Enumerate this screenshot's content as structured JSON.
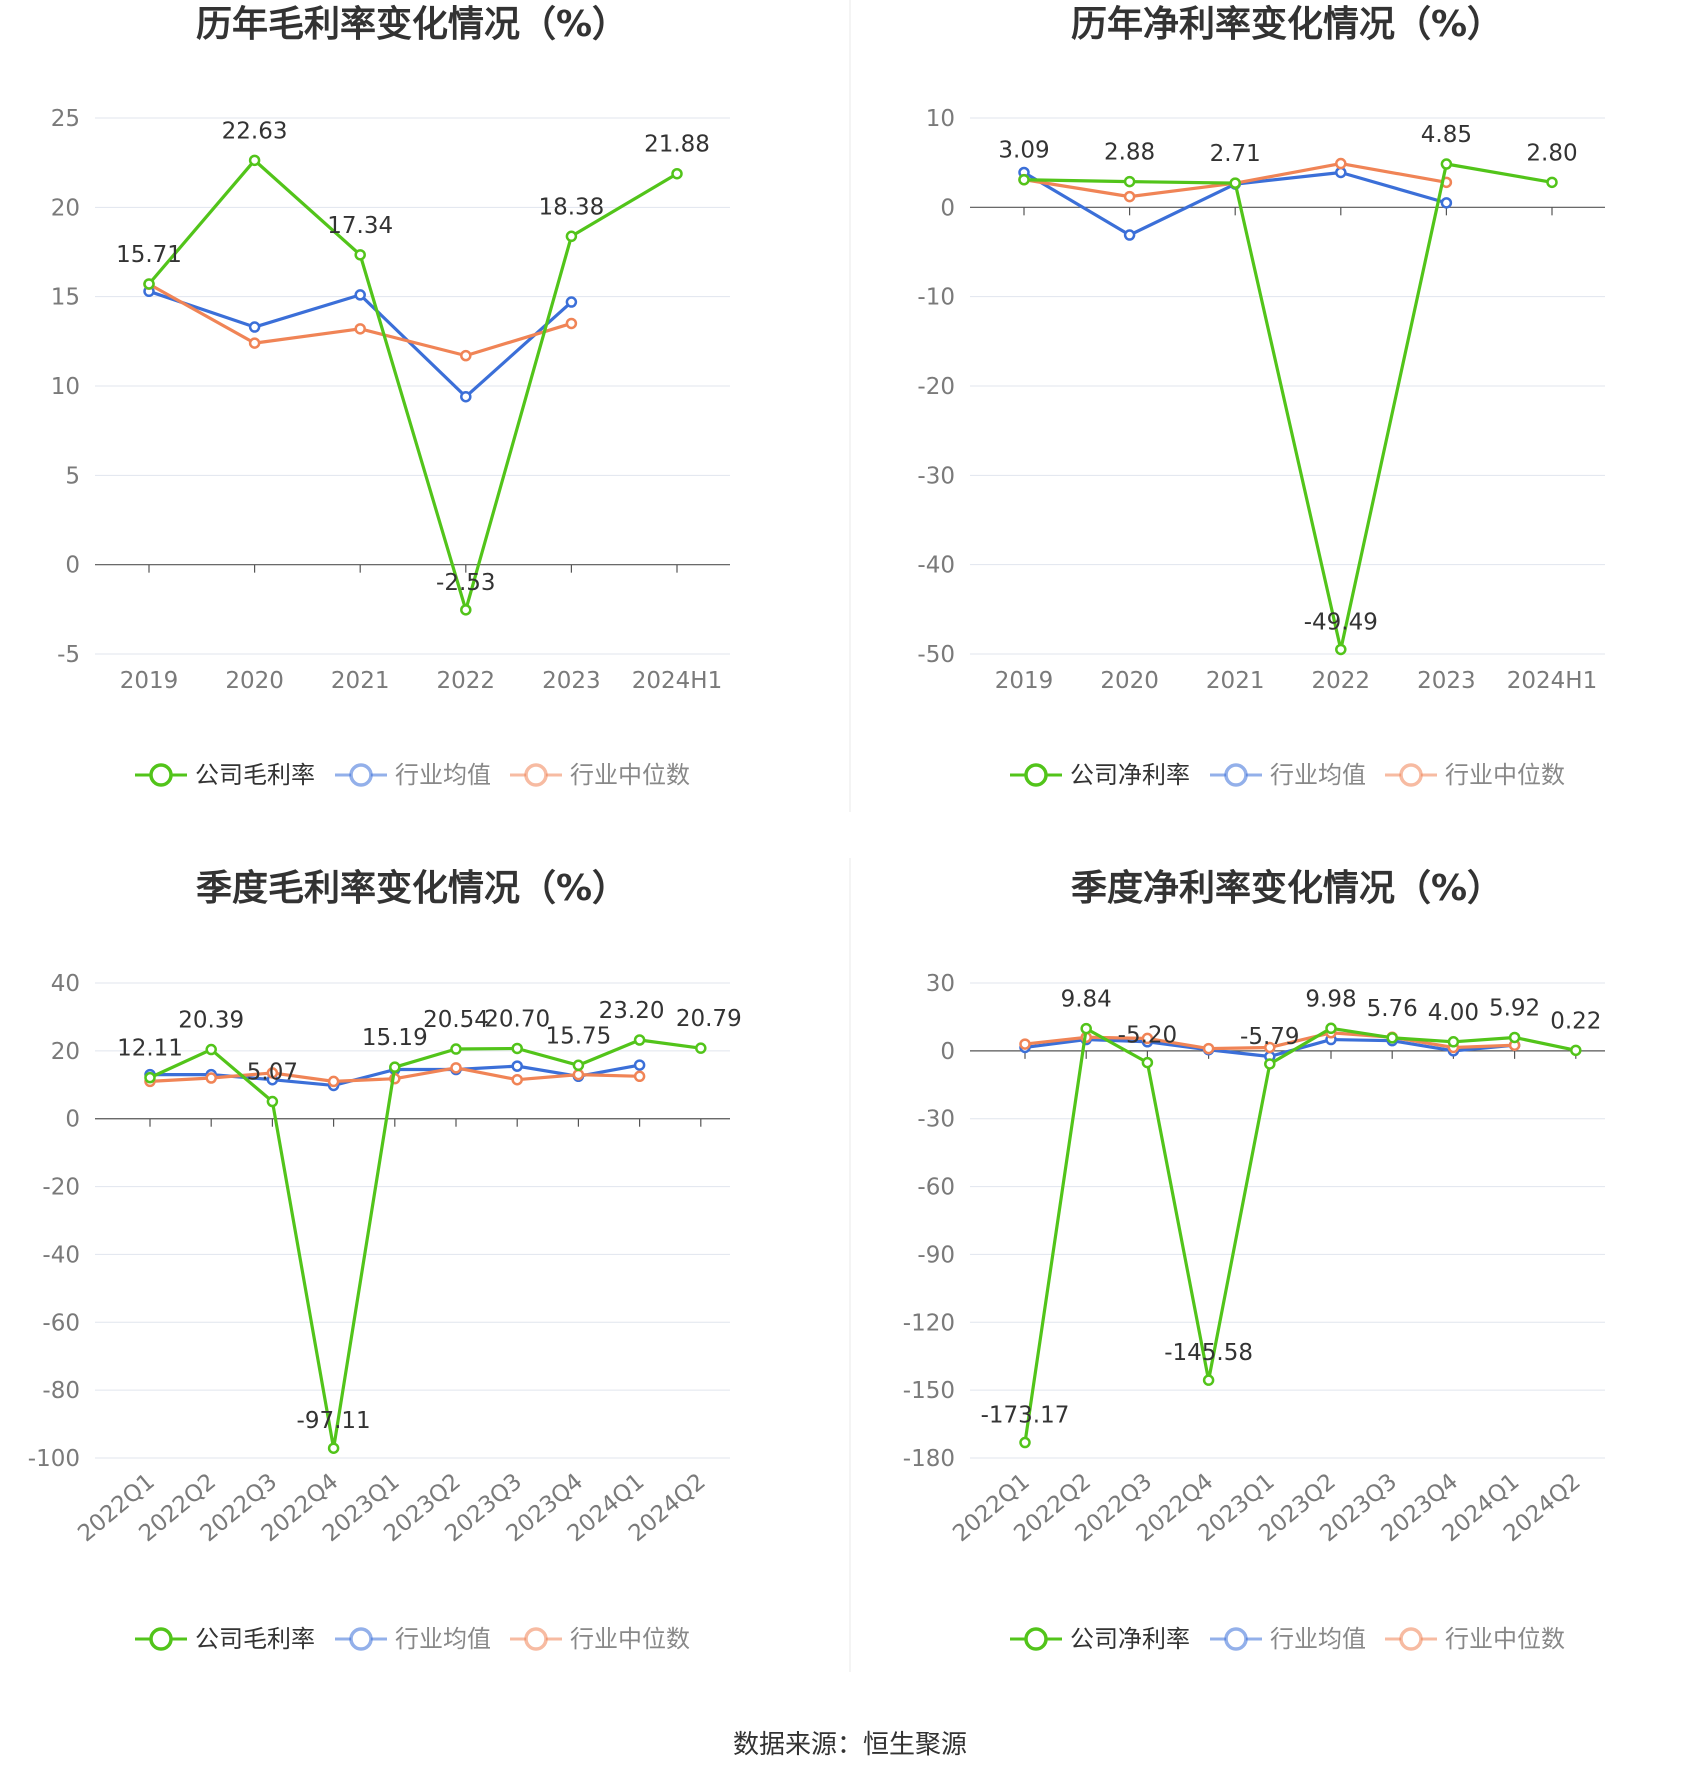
{
  "source_text": "数据来源：恒生聚源",
  "colors": {
    "company": "#52c41a",
    "avg": "#3b6fd8",
    "median": "#f08456",
    "grid": "#e1e5ee",
    "axis": "#555555"
  },
  "chart_data": [
    {
      "type": "line",
      "title": "历年毛利率变化情况（%）",
      "categories": [
        "2019",
        "2020",
        "2021",
        "2022",
        "2023",
        "2024H1"
      ],
      "yticks": [
        25,
        20,
        15,
        10,
        5,
        0,
        -5
      ],
      "ylim": [
        -5,
        25
      ],
      "series": [
        {
          "name": "公司毛利率",
          "values": [
            15.71,
            22.63,
            17.34,
            -2.53,
            18.38,
            21.88
          ],
          "labels": [
            "15.71",
            "22.63",
            "17.34",
            "-2.53",
            "18.38",
            "21.88"
          ]
        },
        {
          "name": "行业均值",
          "values": [
            15.3,
            13.3,
            15.1,
            9.4,
            14.7,
            null
          ]
        },
        {
          "name": "行业中位数",
          "values": [
            15.7,
            12.4,
            13.2,
            11.7,
            13.5,
            null
          ]
        }
      ],
      "legend": "bottom"
    },
    {
      "type": "line",
      "title": "历年净利率变化情况（%）",
      "categories": [
        "2019",
        "2020",
        "2021",
        "2022",
        "2023",
        "2024H1"
      ],
      "yticks": [
        10,
        0,
        -10,
        -20,
        -30,
        -40,
        -50
      ],
      "ylim": [
        -50,
        10
      ],
      "series": [
        {
          "name": "公司净利率",
          "values": [
            3.09,
            2.88,
            2.71,
            -49.49,
            4.85,
            2.8
          ],
          "labels": [
            "3.09",
            "2.88",
            "2.71",
            "-49.49",
            "4.85",
            "2.80"
          ]
        },
        {
          "name": "行业均值",
          "values": [
            3.9,
            -3.1,
            2.6,
            3.9,
            0.5,
            null
          ]
        },
        {
          "name": "行业中位数",
          "values": [
            3.1,
            1.2,
            2.7,
            4.9,
            2.8,
            null
          ]
        }
      ],
      "legend": "bottom"
    },
    {
      "type": "line",
      "title": "季度毛利率变化情况（%）",
      "categories": [
        "2022Q1",
        "2022Q2",
        "2022Q3",
        "2022Q4",
        "2023Q1",
        "2023Q2",
        "2023Q3",
        "2023Q4",
        "2024Q1",
        "2024Q2"
      ],
      "yticks": [
        40,
        20,
        0,
        -20,
        -40,
        -60,
        -80,
        -100
      ],
      "ylim": [
        -100,
        40
      ],
      "series": [
        {
          "name": "公司毛利率",
          "values": [
            12.11,
            20.39,
            5.07,
            -97.11,
            15.19,
            20.54,
            20.7,
            15.75,
            23.2,
            20.79
          ],
          "labels": [
            "12.11",
            "20.39",
            "5.07",
            "-97.11",
            "15.19",
            "20.54",
            "20.70",
            "15.75",
            "23.20",
            "20.79"
          ]
        },
        {
          "name": "行业均值",
          "values": [
            13.0,
            13.0,
            11.5,
            9.8,
            14.5,
            14.5,
            15.5,
            12.5,
            15.8,
            null
          ]
        },
        {
          "name": "行业中位数",
          "values": [
            11.0,
            12.0,
            13.5,
            11.0,
            11.8,
            15.0,
            11.5,
            13.0,
            12.5,
            null
          ]
        }
      ],
      "legend": "bottom"
    },
    {
      "type": "line",
      "title": "季度净利率变化情况（%）",
      "categories": [
        "2022Q1",
        "2022Q2",
        "2022Q3",
        "2022Q4",
        "2023Q1",
        "2023Q2",
        "2023Q3",
        "2023Q4",
        "2024Q1",
        "2024Q2"
      ],
      "yticks": [
        30,
        0,
        -30,
        -60,
        -90,
        -120,
        -150,
        -180
      ],
      "ylim": [
        -180,
        30
      ],
      "series": [
        {
          "name": "公司净利率",
          "values": [
            -173.17,
            9.84,
            -5.2,
            -145.58,
            -5.79,
            9.98,
            5.76,
            4.0,
            5.92,
            0.22
          ],
          "labels": [
            "-173.17",
            "9.84",
            "-5.20",
            "-145.58",
            "-5.79",
            "9.98",
            "5.76",
            "4.00",
            "5.92",
            "0.22"
          ]
        },
        {
          "name": "行业均值",
          "values": [
            1.5,
            5.0,
            4.0,
            0.5,
            -2.5,
            5.0,
            4.5,
            0.0,
            2.5,
            null
          ]
        },
        {
          "name": "行业中位数",
          "values": [
            3.0,
            6.0,
            5.5,
            1.0,
            1.5,
            8.0,
            6.0,
            1.5,
            2.5,
            null
          ]
        }
      ],
      "legend": "bottom"
    }
  ]
}
